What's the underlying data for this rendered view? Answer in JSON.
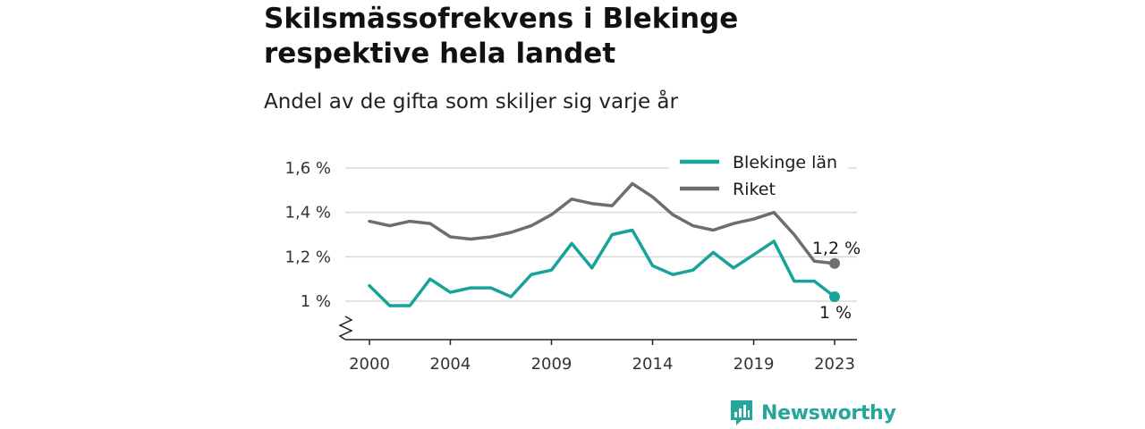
{
  "title": "Skilsmässofrekvens i Blekinge respektive hela landet",
  "subtitle": "Andel av de gifta som skiljer sig varje år",
  "brand": "Newsworthy",
  "chart_data": {
    "type": "line",
    "x": [
      2000,
      2001,
      2002,
      2003,
      2004,
      2005,
      2006,
      2007,
      2008,
      2009,
      2010,
      2011,
      2012,
      2013,
      2014,
      2015,
      2016,
      2017,
      2018,
      2019,
      2020,
      2021,
      2022,
      2023
    ],
    "x_ticks": [
      2000,
      2004,
      2009,
      2014,
      2019,
      2023
    ],
    "x_tick_labels": [
      "2000",
      "2004",
      "2009",
      "2014",
      "2019",
      "2023"
    ],
    "y_ticks": [
      1.0,
      1.2,
      1.4,
      1.6
    ],
    "y_tick_labels": [
      "1 %",
      "1,2 %",
      "1,4 %",
      "1,6 %"
    ],
    "ylim": [
      0.83,
      1.63
    ],
    "y_axis_break": true,
    "grid": true,
    "legend_position": "top-right",
    "series": [
      {
        "name": "Blekinge län",
        "color": "#17a398",
        "end_label": "1 %",
        "values": [
          1.07,
          0.98,
          0.98,
          1.1,
          1.04,
          1.06,
          1.06,
          1.02,
          1.12,
          1.14,
          1.26,
          1.15,
          1.3,
          1.32,
          1.16,
          1.12,
          1.14,
          1.22,
          1.15,
          1.21,
          1.27,
          1.09,
          1.09,
          1.02
        ]
      },
      {
        "name": "Riket",
        "color": "#6d6d72",
        "end_label": "1,2 %",
        "values": [
          1.36,
          1.34,
          1.36,
          1.35,
          1.29,
          1.28,
          1.29,
          1.31,
          1.34,
          1.39,
          1.46,
          1.44,
          1.43,
          1.53,
          1.47,
          1.39,
          1.34,
          1.32,
          1.35,
          1.37,
          1.4,
          1.3,
          1.18,
          1.17
        ]
      }
    ]
  }
}
